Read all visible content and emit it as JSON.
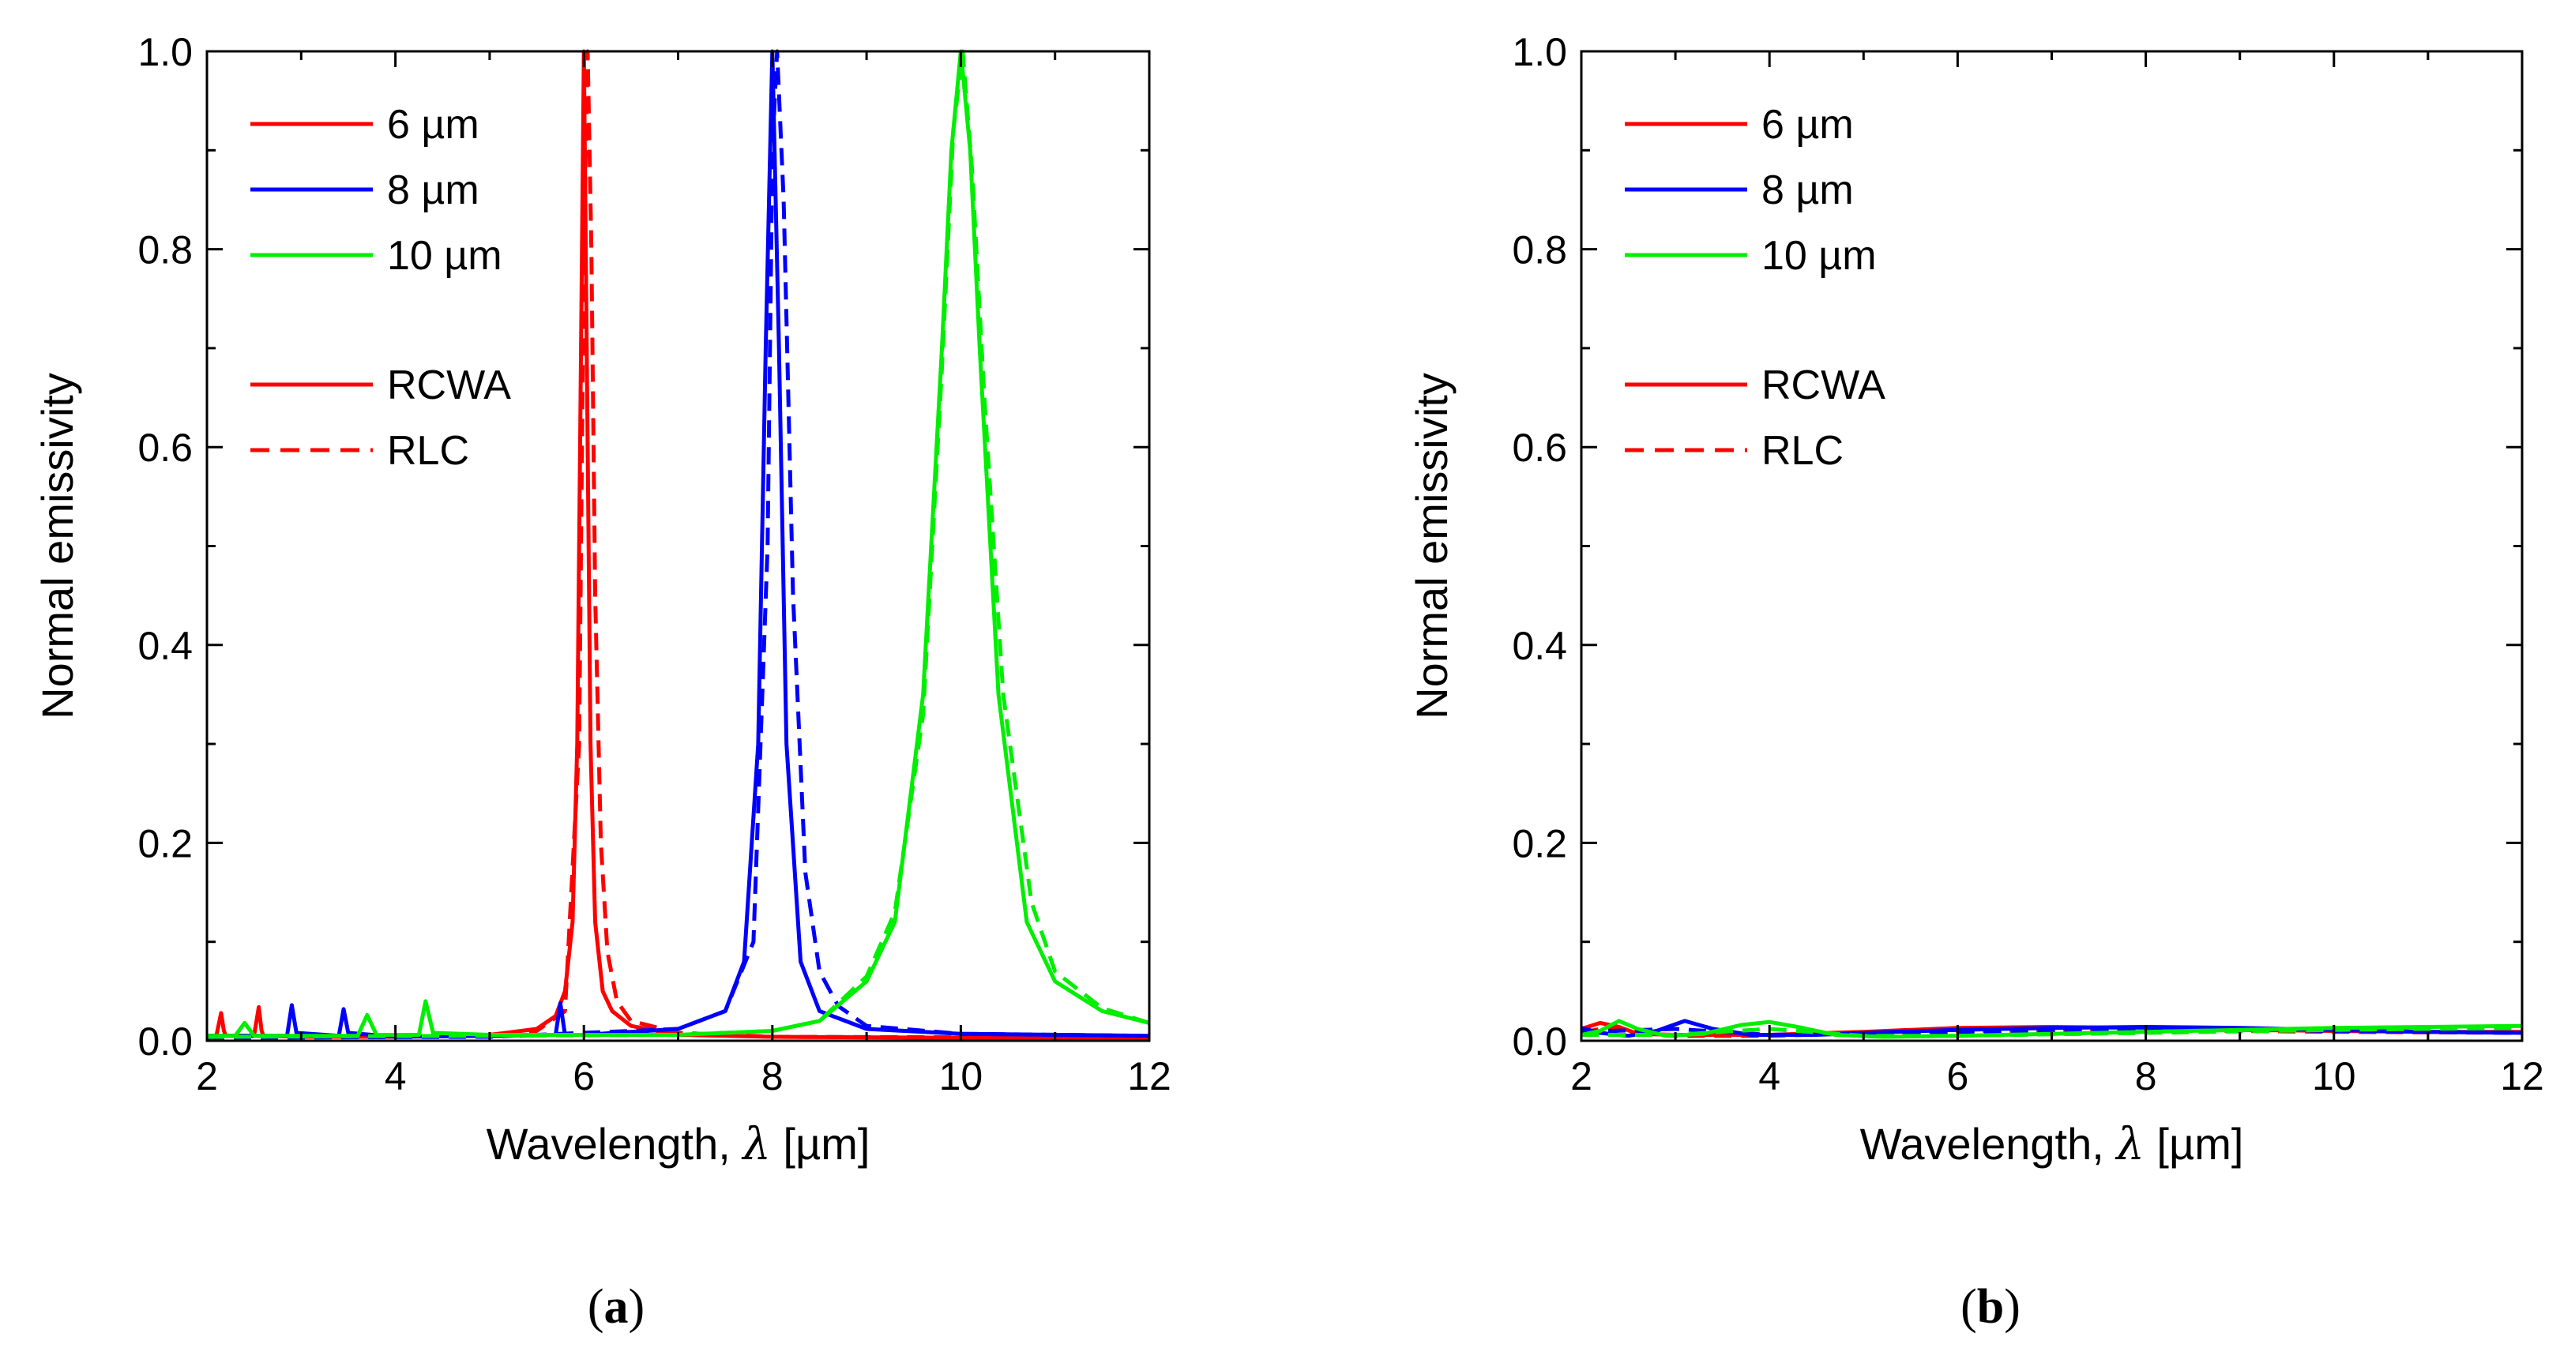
{
  "colors": {
    "6um": "#ff0000",
    "8um": "#0000ff",
    "10um": "#00ee00",
    "axis": "#000000"
  },
  "common": {
    "ylabel": "Normal emissivity",
    "xlabel_prefix": "Wavelength, ",
    "xlabel_symbol": "λ",
    "xlabel_unit": " [µm]",
    "xticks": [
      "2",
      "4",
      "6",
      "8",
      "10",
      "12"
    ],
    "yticks": [
      "0.0",
      "0.2",
      "0.4",
      "0.6",
      "0.8",
      "1.0"
    ],
    "legend_series": [
      "6 µm",
      "8 µm",
      "10 µm"
    ],
    "legend_styles": [
      "RCWA",
      "RLC"
    ]
  },
  "chart_data": [
    {
      "type": "line",
      "panel": "(a)",
      "panel_letter": "a",
      "xlabel": "Wavelength, λ [µm]",
      "ylabel": "Normal emissivity",
      "xlim": [
        2,
        12
      ],
      "ylim": [
        0,
        1.0
      ],
      "legend": "top-left",
      "series": [
        {
          "name": "6 µm",
          "style": "RCWA",
          "color": "#ff0000",
          "x": [
            2.0,
            2.1,
            2.15,
            2.18,
            2.2,
            2.5,
            2.55,
            2.58,
            2.6,
            3.0,
            4.0,
            5.0,
            5.5,
            5.7,
            5.8,
            5.88,
            5.93,
            5.97,
            6.0,
            6.03,
            6.07,
            6.12,
            6.2,
            6.3,
            6.5,
            7.0,
            8.0,
            10.0,
            12.0
          ],
          "y": [
            0.005,
            0.005,
            0.028,
            0.01,
            0.005,
            0.005,
            0.034,
            0.01,
            0.005,
            0.004,
            0.004,
            0.006,
            0.012,
            0.025,
            0.05,
            0.12,
            0.3,
            0.7,
            1.0,
            0.7,
            0.3,
            0.12,
            0.05,
            0.03,
            0.015,
            0.006,
            0.004,
            0.003,
            0.003
          ]
        },
        {
          "name": "6 µm",
          "style": "RLC",
          "color": "#ff0000",
          "x": [
            2.0,
            4.0,
            5.0,
            5.5,
            5.8,
            5.95,
            6.0,
            6.04,
            6.08,
            6.12,
            6.18,
            6.25,
            6.35,
            6.5,
            7.0,
            8.0,
            12.0
          ],
          "y": [
            0.003,
            0.004,
            0.006,
            0.01,
            0.03,
            0.3,
            0.8,
            1.0,
            0.8,
            0.45,
            0.2,
            0.09,
            0.04,
            0.02,
            0.008,
            0.004,
            0.003
          ]
        },
        {
          "name": "8 µm",
          "style": "RCWA",
          "color": "#0000ff",
          "x": [
            2.0,
            2.85,
            2.9,
            2.95,
            3.4,
            3.45,
            3.5,
            4.0,
            5.0,
            5.7,
            5.75,
            5.8,
            6.0,
            7.0,
            7.5,
            7.7,
            7.85,
            7.93,
            8.0,
            8.07,
            8.15,
            8.3,
            8.5,
            9.0,
            10.0,
            12.0
          ],
          "y": [
            0.005,
            0.005,
            0.036,
            0.008,
            0.005,
            0.032,
            0.008,
            0.004,
            0.005,
            0.006,
            0.038,
            0.006,
            0.006,
            0.012,
            0.03,
            0.08,
            0.3,
            0.7,
            1.0,
            0.7,
            0.3,
            0.08,
            0.03,
            0.012,
            0.007,
            0.005
          ]
        },
        {
          "name": "8 µm",
          "style": "RLC",
          "color": "#0000ff",
          "x": [
            2.0,
            5.0,
            7.0,
            7.5,
            7.8,
            7.95,
            8.0,
            8.05,
            8.12,
            8.22,
            8.35,
            8.5,
            8.7,
            9.0,
            10.0,
            12.0
          ],
          "y": [
            0.003,
            0.004,
            0.012,
            0.03,
            0.1,
            0.5,
            0.9,
            1.0,
            0.85,
            0.45,
            0.17,
            0.07,
            0.035,
            0.015,
            0.007,
            0.005
          ]
        },
        {
          "name": "10 µm",
          "style": "RCWA",
          "color": "#00ee00",
          "x": [
            2.0,
            2.3,
            2.4,
            2.5,
            2.6,
            3.6,
            3.7,
            3.8,
            4.25,
            4.32,
            4.4,
            5.0,
            7.0,
            8.0,
            8.5,
            9.0,
            9.3,
            9.6,
            9.8,
            9.9,
            10.0,
            10.1,
            10.2,
            10.4,
            10.7,
            11.0,
            11.5,
            12.0
          ],
          "y": [
            0.005,
            0.005,
            0.018,
            0.005,
            0.005,
            0.005,
            0.026,
            0.006,
            0.006,
            0.04,
            0.008,
            0.006,
            0.006,
            0.01,
            0.02,
            0.06,
            0.12,
            0.35,
            0.7,
            0.9,
            1.0,
            0.9,
            0.7,
            0.35,
            0.12,
            0.06,
            0.03,
            0.018
          ]
        },
        {
          "name": "10 µm",
          "style": "RLC",
          "color": "#00ee00",
          "x": [
            2.0,
            5.0,
            7.0,
            8.0,
            8.5,
            9.0,
            9.3,
            9.6,
            9.8,
            9.92,
            10.02,
            10.12,
            10.25,
            10.45,
            10.75,
            11.0,
            11.5,
            12.0
          ],
          "y": [
            0.004,
            0.005,
            0.006,
            0.01,
            0.02,
            0.065,
            0.13,
            0.33,
            0.68,
            0.92,
            1.0,
            0.88,
            0.65,
            0.35,
            0.14,
            0.07,
            0.033,
            0.018
          ]
        }
      ]
    },
    {
      "type": "line",
      "panel": "(b)",
      "panel_letter": "b",
      "xlabel": "Wavelength, λ [µm]",
      "ylabel": "Normal emissivity",
      "xlim": [
        2,
        12
      ],
      "ylim": [
        0,
        1.0
      ],
      "legend": "top-left",
      "series": [
        {
          "name": "6 µm",
          "style": "RCWA",
          "color": "#ff0000",
          "x": [
            2.0,
            2.2,
            2.4,
            2.6,
            3.0,
            4.0,
            5.0,
            6.0,
            7.0,
            8.0,
            9.0,
            10.0,
            11.0,
            12.0
          ],
          "y": [
            0.012,
            0.018,
            0.014,
            0.007,
            0.006,
            0.006,
            0.009,
            0.013,
            0.014,
            0.013,
            0.011,
            0.01,
            0.009,
            0.009
          ]
        },
        {
          "name": "6 µm",
          "style": "RLC",
          "color": "#ff0000",
          "x": [
            2.0,
            2.3,
            2.6,
            3.0,
            4.0,
            6.0,
            8.0,
            10.0,
            12.0
          ],
          "y": [
            0.008,
            0.014,
            0.008,
            0.005,
            0.005,
            0.01,
            0.011,
            0.009,
            0.008
          ]
        },
        {
          "name": "8 µm",
          "style": "RCWA",
          "color": "#0000ff",
          "x": [
            2.0,
            2.2,
            2.5,
            2.8,
            3.1,
            3.4,
            3.8,
            4.5,
            5.0,
            6.0,
            7.0,
            8.0,
            9.0,
            10.0,
            11.0,
            12.0
          ],
          "y": [
            0.013,
            0.008,
            0.005,
            0.01,
            0.02,
            0.012,
            0.006,
            0.006,
            0.008,
            0.011,
            0.013,
            0.014,
            0.013,
            0.011,
            0.009,
            0.008
          ]
        },
        {
          "name": "8 µm",
          "style": "RLC",
          "color": "#0000ff",
          "x": [
            2.0,
            3.0,
            4.0,
            6.0,
            8.0,
            10.0,
            12.0
          ],
          "y": [
            0.009,
            0.012,
            0.006,
            0.009,
            0.012,
            0.01,
            0.008
          ]
        },
        {
          "name": "10 µm",
          "style": "RCWA",
          "color": "#00ee00",
          "x": [
            2.0,
            2.2,
            2.4,
            2.6,
            2.9,
            3.3,
            3.7,
            4.0,
            4.3,
            4.7,
            5.2,
            6.0,
            7.0,
            8.0,
            9.0,
            10.0,
            11.0,
            12.0
          ],
          "y": [
            0.006,
            0.01,
            0.02,
            0.012,
            0.005,
            0.007,
            0.016,
            0.019,
            0.014,
            0.006,
            0.004,
            0.005,
            0.007,
            0.009,
            0.011,
            0.013,
            0.014,
            0.015
          ]
        },
        {
          "name": "10 µm",
          "style": "RLC",
          "color": "#00ee00",
          "x": [
            2.0,
            3.0,
            4.0,
            5.0,
            6.0,
            8.0,
            10.0,
            12.0
          ],
          "y": [
            0.006,
            0.006,
            0.012,
            0.005,
            0.005,
            0.008,
            0.011,
            0.013
          ]
        }
      ]
    }
  ]
}
